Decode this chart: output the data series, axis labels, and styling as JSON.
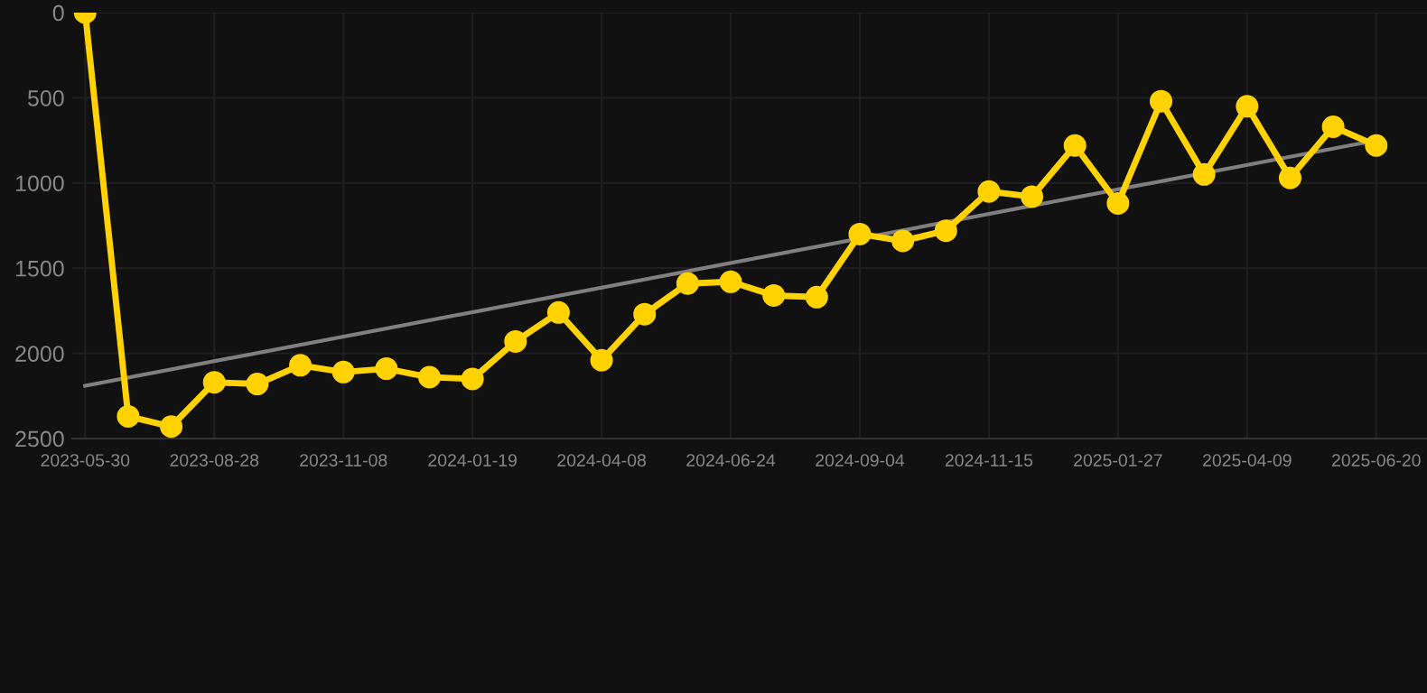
{
  "chart_data": {
    "type": "line",
    "categories": [
      "2023-05-30",
      null,
      null,
      "2023-08-28",
      null,
      null,
      "2023-11-08",
      null,
      null,
      "2024-01-19",
      null,
      null,
      "2024-04-08",
      null,
      null,
      "2024-06-24",
      null,
      null,
      "2024-09-04",
      null,
      null,
      "2024-11-15",
      null,
      null,
      "2025-01-27",
      null,
      null,
      "2025-04-09",
      null,
      null,
      "2025-06-20"
    ],
    "series": [
      {
        "color": "#ffd200",
        "marker": "circle",
        "values": [
          0,
          2370,
          2430,
          2170,
          2180,
          2070,
          2110,
          2090,
          2140,
          2150,
          1930,
          1760,
          2040,
          1770,
          1590,
          1580,
          1660,
          1670,
          1300,
          1340,
          1280,
          1050,
          1080,
          780,
          1120,
          520,
          950,
          550,
          970,
          670,
          780
        ]
      },
      {
        "color": "#808080",
        "marker": "none",
        "values": [
          2190,
          null,
          null,
          null,
          null,
          null,
          null,
          null,
          null,
          null,
          null,
          null,
          null,
          null,
          null,
          null,
          null,
          null,
          null,
          null,
          null,
          null,
          null,
          null,
          null,
          null,
          null,
          null,
          null,
          null,
          750
        ]
      }
    ],
    "ylim": [
      2500,
      0
    ],
    "yticks": [
      0,
      500,
      1000,
      1500,
      2000,
      2500
    ],
    "grid": true,
    "line_style": "solid"
  }
}
